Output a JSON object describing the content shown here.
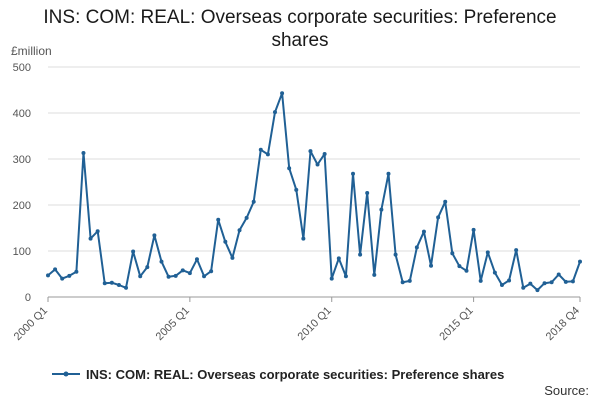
{
  "chart_data": {
    "type": "line",
    "title": "INS: COM: REAL: Overseas corporate securities: Preference shares",
    "ylabel": "£million",
    "xlabel": "",
    "ylim": [
      0,
      500
    ],
    "yticks": [
      "0",
      "100",
      "200",
      "300",
      "400",
      "500"
    ],
    "xticks": [
      "2000 Q1",
      "2005 Q1",
      "2010 Q1",
      "2015 Q1",
      "2018 Q4"
    ],
    "grid": true,
    "legend_position": "bottom",
    "colors": {
      "series": "#206095",
      "grid": "#dddddd",
      "axis": "#999999"
    },
    "x": [
      "2000 Q1",
      "2000 Q2",
      "2000 Q3",
      "2000 Q4",
      "2001 Q1",
      "2001 Q2",
      "2001 Q3",
      "2001 Q4",
      "2002 Q1",
      "2002 Q2",
      "2002 Q3",
      "2002 Q4",
      "2003 Q1",
      "2003 Q2",
      "2003 Q3",
      "2003 Q4",
      "2004 Q1",
      "2004 Q2",
      "2004 Q3",
      "2004 Q4",
      "2005 Q1",
      "2005 Q2",
      "2005 Q3",
      "2005 Q4",
      "2006 Q1",
      "2006 Q2",
      "2006 Q3",
      "2006 Q4",
      "2007 Q1",
      "2007 Q2",
      "2007 Q3",
      "2007 Q4",
      "2008 Q1",
      "2008 Q2",
      "2008 Q3",
      "2008 Q4",
      "2009 Q1",
      "2009 Q2",
      "2009 Q3",
      "2009 Q4",
      "2010 Q1",
      "2010 Q2",
      "2010 Q3",
      "2010 Q4",
      "2011 Q1",
      "2011 Q2",
      "2011 Q3",
      "2011 Q4",
      "2012 Q1",
      "2012 Q2",
      "2012 Q3",
      "2012 Q4",
      "2013 Q1",
      "2013 Q2",
      "2013 Q3",
      "2013 Q4",
      "2014 Q1",
      "2014 Q2",
      "2014 Q3",
      "2014 Q4",
      "2015 Q1",
      "2015 Q2",
      "2015 Q3",
      "2015 Q4",
      "2016 Q1",
      "2016 Q2",
      "2016 Q3",
      "2016 Q4",
      "2017 Q1",
      "2017 Q2",
      "2017 Q3",
      "2017 Q4",
      "2018 Q1",
      "2018 Q2",
      "2018 Q3",
      "2018 Q4"
    ],
    "series": [
      {
        "name": "INS: COM: REAL: Overseas corporate securities: Preference shares",
        "values": [
          47,
          60,
          40,
          46,
          55,
          313,
          127,
          143,
          30,
          31,
          26,
          20,
          99,
          45,
          65,
          134,
          77,
          44,
          46,
          58,
          52,
          82,
          45,
          56,
          168,
          120,
          85,
          145,
          172,
          207,
          320,
          310,
          402,
          443,
          280,
          233,
          127,
          317,
          288,
          311,
          40,
          84,
          45,
          268,
          92,
          226,
          48,
          190,
          268,
          92,
          32,
          35,
          108,
          142,
          68,
          173,
          207,
          95,
          67,
          57,
          146,
          35,
          97,
          53,
          26,
          36,
          102,
          20,
          29,
          15,
          30,
          32,
          49,
          33,
          34,
          77
        ]
      }
    ],
    "legend": [
      "INS: COM: REAL: Overseas corporate securities: Preference shares"
    ],
    "source": "Source:"
  }
}
